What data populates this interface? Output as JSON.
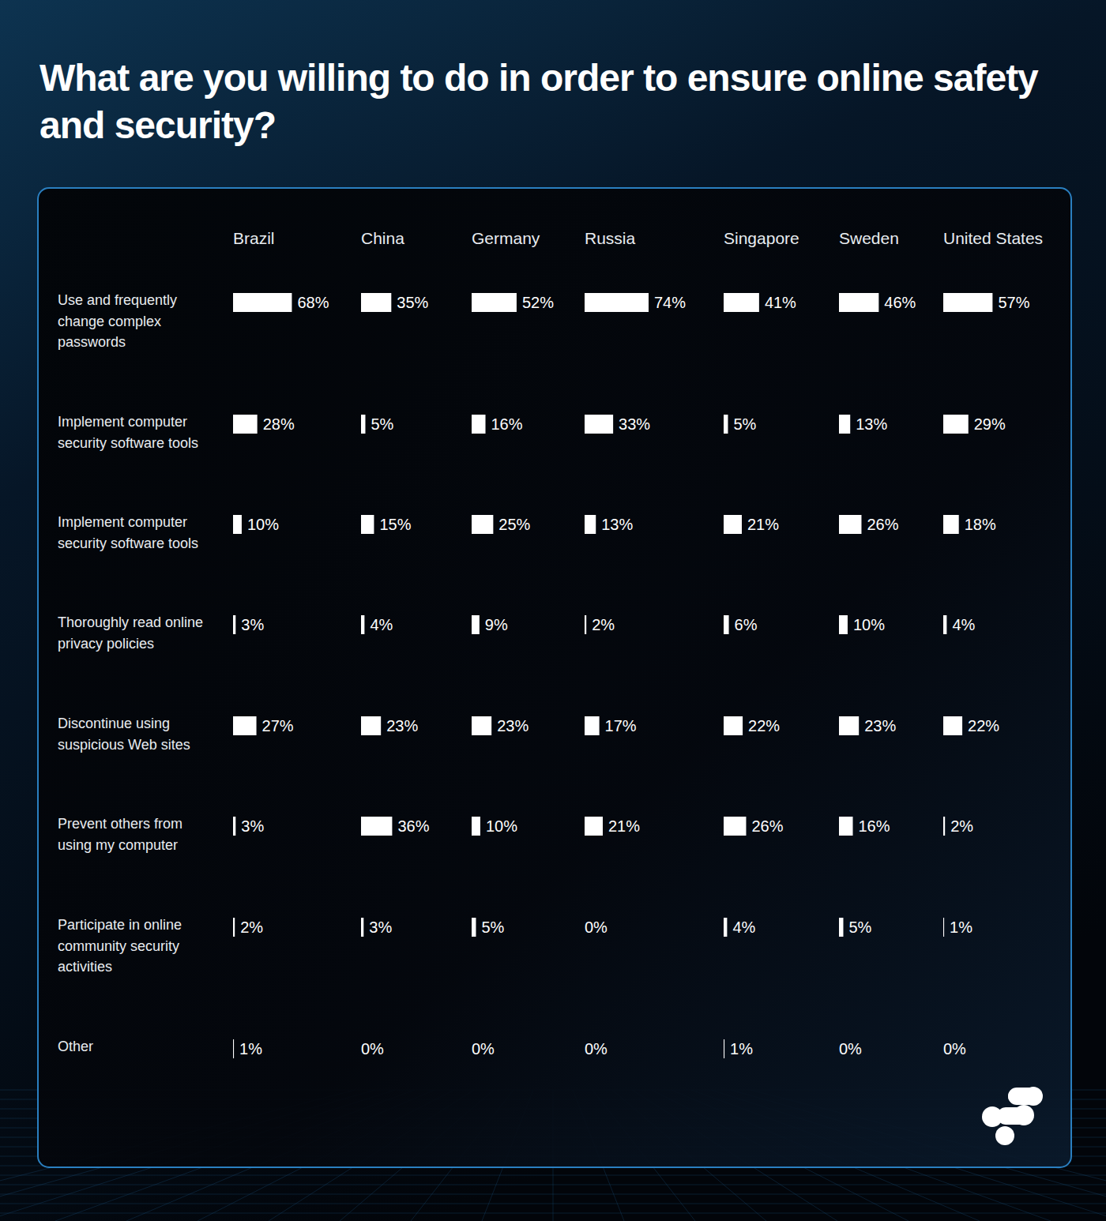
{
  "chart_data": {
    "type": "bar",
    "title": "What are you willing to do in order to ensure online safety and security?",
    "orientation": "horizontal",
    "data_labels": true,
    "tick_labels": false,
    "color": "#ffffff",
    "categories": [
      "Use and frequently change complex passwords",
      "Implement computer security software tools",
      "Implement computer security software tools",
      "Thoroughly read online privacy policies",
      "Discontinue using suspicious Web sites",
      "Prevent others from using my computer",
      "Participate in online community security activities",
      "Other"
    ],
    "series": [
      {
        "name": "Brazil",
        "values": [
          68,
          28,
          10,
          3,
          27,
          3,
          2,
          1
        ],
        "value_labels": [
          "68%",
          "28%",
          "10%",
          "3%",
          "27%",
          "3%",
          "2%",
          "1%"
        ]
      },
      {
        "name": "China",
        "values": [
          35,
          5,
          15,
          4,
          23,
          36,
          3,
          0
        ],
        "value_labels": [
          "35%",
          "5%",
          "15%",
          "4%",
          "23%",
          "36%",
          "3%",
          "0%"
        ]
      },
      {
        "name": "Germany",
        "values": [
          52,
          16,
          25,
          9,
          23,
          10,
          5,
          0
        ],
        "value_labels": [
          "52%",
          "16%",
          "25%",
          "9%",
          "23%",
          "10%",
          "5%",
          "0%"
        ]
      },
      {
        "name": "Russia",
        "values": [
          74,
          33,
          13,
          2,
          17,
          21,
          0,
          0
        ],
        "value_labels": [
          "74%",
          "33%",
          "13%",
          "2%",
          "17%",
          "21%",
          "0%",
          "0%"
        ]
      },
      {
        "name": "Singapore",
        "values": [
          41,
          5,
          21,
          6,
          22,
          26,
          4,
          1
        ],
        "value_labels": [
          "41%",
          "5%",
          "21%",
          "6%",
          "22%",
          "26%",
          "4%",
          "1%"
        ]
      },
      {
        "name": "Sweden",
        "values": [
          46,
          13,
          26,
          10,
          23,
          16,
          5,
          0
        ],
        "value_labels": [
          "46%",
          "13%",
          "26%",
          "10%",
          "23%",
          "16%",
          "5%",
          "0%"
        ]
      },
      {
        "name": "United States",
        "values": [
          57,
          29,
          18,
          4,
          22,
          2,
          1,
          0
        ],
        "value_labels": [
          "57%",
          "29%",
          "18%",
          "4%",
          "22%",
          "2%",
          "1%",
          "0%"
        ]
      }
    ]
  }
}
